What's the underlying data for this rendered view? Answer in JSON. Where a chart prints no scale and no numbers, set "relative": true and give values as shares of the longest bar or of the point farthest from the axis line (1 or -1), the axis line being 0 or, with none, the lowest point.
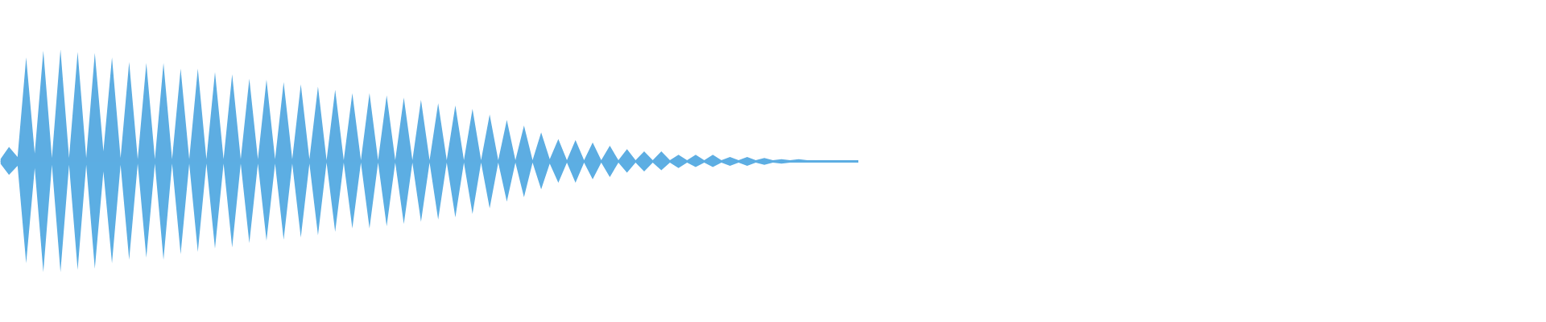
{
  "chart_data": {
    "type": "area",
    "relative": true,
    "categories": [
      null,
      null,
      null,
      null,
      null,
      null,
      null,
      null,
      null,
      null,
      null,
      null,
      null,
      null,
      null,
      null,
      null,
      null,
      null,
      null,
      null,
      null,
      null,
      null,
      null,
      null,
      null,
      null,
      null,
      null,
      null,
      null,
      null,
      null,
      null,
      null,
      null,
      null,
      null,
      null,
      null,
      null,
      null,
      null,
      null,
      null,
      null,
      null,
      null,
      null,
      null,
      null,
      null,
      null,
      null,
      null,
      null,
      null,
      null,
      null,
      null,
      null,
      null,
      null,
      null,
      null,
      null,
      null,
      null,
      null,
      null,
      null,
      null,
      null,
      null,
      null,
      null,
      null,
      null,
      null,
      null,
      null,
      null,
      null,
      null,
      null,
      null,
      null,
      null,
      null,
      null,
      null,
      null,
      null,
      null,
      null,
      null,
      null,
      null,
      null,
      null
    ],
    "series": [
      {
        "color": "#5dade2",
        "values": [
          0.02,
          0.13,
          0.04,
          0.93,
          0.07,
          0.99,
          0.03,
          1.0,
          0.03,
          0.98,
          0.03,
          0.97,
          0.09,
          0.93,
          0.03,
          0.89,
          0.02,
          0.88,
          0.02,
          0.88,
          0.02,
          0.83,
          0.02,
          0.83,
          0.02,
          0.8,
          0.02,
          0.78,
          0.02,
          0.74,
          0.02,
          0.73,
          0.02,
          0.71,
          0.02,
          0.69,
          0.02,
          0.67,
          0.01,
          0.64,
          0.01,
          0.61,
          0.01,
          0.61,
          0.01,
          0.59,
          0.01,
          0.57,
          0.01,
          0.55,
          0.01,
          0.52,
          0.01,
          0.5,
          0.01,
          0.47,
          0.01,
          0.42,
          0.01,
          0.37,
          0.01,
          0.32,
          0.01,
          0.26,
          0.02,
          0.2,
          0.01,
          0.19,
          0.01,
          0.17,
          0.01,
          0.14,
          0.01,
          0.11,
          0.01,
          0.09,
          0.01,
          0.09,
          0.01,
          0.06,
          0.01,
          0.06,
          0.01,
          0.06,
          0.01,
          0.04,
          0.01,
          0.04,
          0.01,
          0.03,
          0.01,
          0.02,
          0.01,
          0.02,
          0.01,
          0.01,
          0.01,
          0.01,
          0.01,
          0.01,
          0.01
        ]
      },
      {
        "color": "#5caee3",
        "values": [
          -0.02,
          -0.12,
          -0.04,
          -0.91,
          -0.06,
          -0.99,
          -0.03,
          -0.99,
          -0.03,
          -0.97,
          -0.03,
          -0.96,
          -0.09,
          -0.91,
          -0.03,
          -0.88,
          -0.02,
          -0.86,
          -0.02,
          -0.88,
          -0.02,
          -0.83,
          -0.02,
          -0.81,
          -0.02,
          -0.78,
          -0.02,
          -0.77,
          -0.02,
          -0.73,
          -0.02,
          -0.71,
          -0.02,
          -0.7,
          -0.02,
          -0.68,
          -0.02,
          -0.66,
          -0.01,
          -0.63,
          -0.01,
          -0.6,
          -0.01,
          -0.6,
          -0.01,
          -0.58,
          -0.01,
          -0.56,
          -0.01,
          -0.54,
          -0.01,
          -0.52,
          -0.01,
          -0.5,
          -0.01,
          -0.47,
          -0.01,
          -0.42,
          -0.01,
          -0.36,
          -0.01,
          -0.32,
          -0.01,
          -0.25,
          -0.02,
          -0.19,
          -0.01,
          -0.19,
          -0.01,
          -0.16,
          -0.01,
          -0.14,
          -0.01,
          -0.1,
          -0.01,
          -0.09,
          -0.01,
          -0.08,
          -0.01,
          -0.06,
          -0.01,
          -0.05,
          -0.01,
          -0.05,
          -0.01,
          -0.04,
          -0.01,
          -0.04,
          -0.01,
          -0.03,
          -0.01,
          -0.02,
          -0.01,
          -0.01,
          -0.01,
          -0.01,
          -0.01,
          -0.01,
          -0.01,
          -0.01,
          -0.01
        ]
      }
    ]
  }
}
